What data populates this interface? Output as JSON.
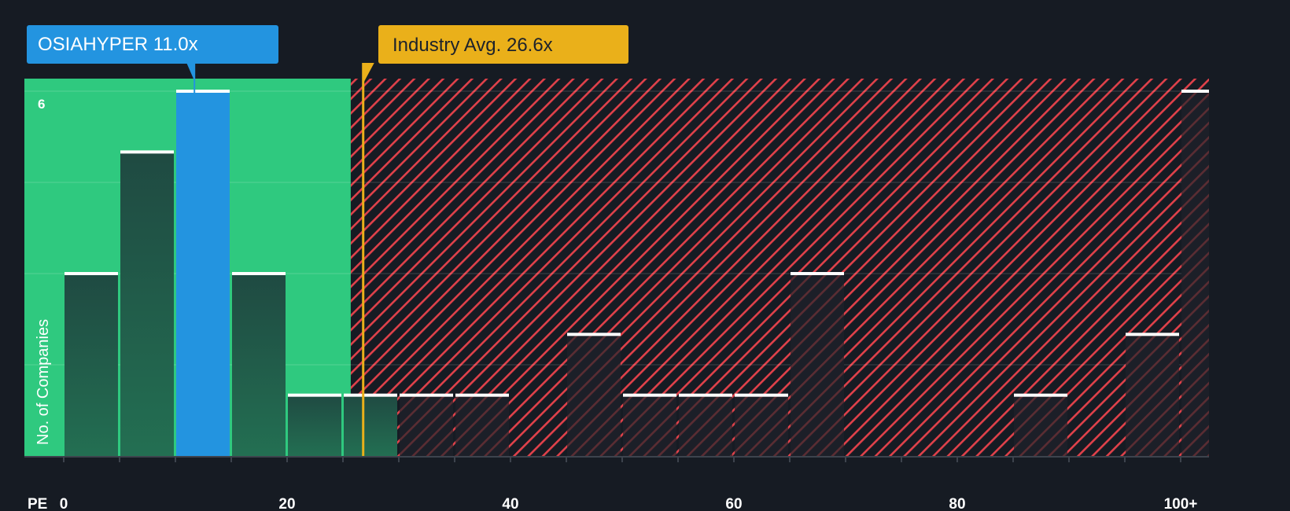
{
  "callouts": {
    "company": {
      "label": "OSIAHYPER 11.0x",
      "value": 11.0,
      "color": "#2394e0"
    },
    "industry": {
      "label": "Industry Avg. 26.6x",
      "value": 26.6,
      "color": "#eab01a"
    }
  },
  "colors": {
    "background": "#161b23",
    "fair_zone": "#2fc97f",
    "over_zone_stripe": "#e0414a",
    "bar_green": "#22584a",
    "bar_dark": "#1c202a",
    "bar_highlight": "#2394e0",
    "bar_cap": "#ffffff"
  },
  "chart_data": {
    "type": "bar",
    "title": "",
    "xlabel": "PE",
    "ylabel": "No. of Companies",
    "ylim": [
      0,
      6
    ],
    "y_tick_labels": [
      "6"
    ],
    "x_tick_labels": [
      "0",
      "20",
      "40",
      "60",
      "80",
      "100+"
    ],
    "bin_width": 5,
    "categories": [
      "0-5",
      "5-10",
      "10-15",
      "15-20",
      "20-25",
      "25-30",
      "30-35",
      "35-40",
      "40-45",
      "45-50",
      "50-55",
      "55-60",
      "60-65",
      "65-70",
      "70-75",
      "75-80",
      "80-85",
      "85-90",
      "90-95",
      "95-100",
      "100+"
    ],
    "values": [
      3,
      5,
      6,
      3,
      1,
      1,
      1,
      1,
      0,
      2,
      1,
      1,
      1,
      3,
      0,
      0,
      0,
      1,
      0,
      2,
      6
    ],
    "highlight_bin": "10-15",
    "fair_zone_max": 25.7,
    "industry_avg": 26.6,
    "company_value": 11.0
  }
}
